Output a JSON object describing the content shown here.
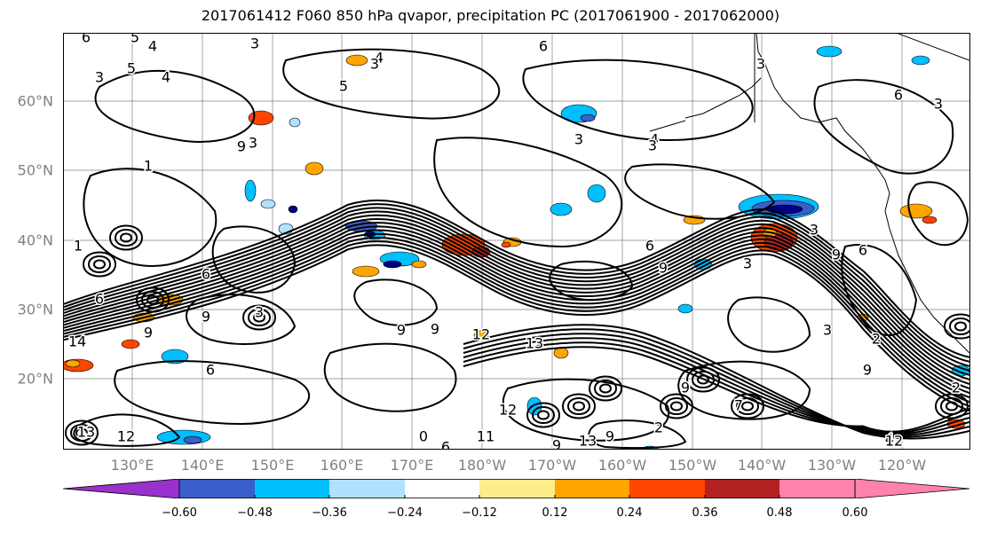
{
  "title": "2017061412 F060 850 hPa qvapor, precipitation PC (2017061900 - 2017062000)",
  "map": {
    "lat_labels": [
      "20°N",
      "30°N",
      "40°N",
      "50°N",
      "60°N"
    ],
    "lon_labels": [
      "130°E",
      "140°E",
      "150°E",
      "160°E",
      "170°E",
      "180°W",
      "170°W",
      "160°W",
      "150°W",
      "140°W",
      "130°W",
      "120°W"
    ],
    "contour_labels": [
      "6",
      "5",
      "4",
      "3",
      "4",
      "4",
      "6",
      "5",
      "3",
      "6",
      "3",
      "4",
      "3",
      "3",
      "3",
      "6",
      "1",
      "9",
      "6",
      "3",
      "1",
      "3",
      "6",
      "6",
      "9",
      "3",
      "9",
      "6",
      "3",
      "2",
      "3",
      "2",
      "13",
      "12",
      "14",
      "9",
      "9",
      "9",
      "9",
      "12",
      "13",
      "11",
      "9",
      "6",
      "9",
      "2",
      "9",
      "9",
      "7",
      "12",
      "13",
      "4",
      "12",
      "6",
      "5",
      "3",
      "0"
    ],
    "line_color": "#000000",
    "grid_color": "#808080"
  },
  "colorbar": {
    "tick_labels": [
      "−0.60",
      "−0.48",
      "−0.36",
      "−0.24",
      "−0.12",
      "0.12",
      "0.24",
      "0.36",
      "0.48",
      "0.60"
    ],
    "colors": [
      "#9932cc",
      "#000080",
      "#3a5fcd",
      "#00bfff",
      "#b0e2ff",
      "#ffffff",
      "#ffec8b",
      "#ffa500",
      "#ff4500",
      "#b22222",
      "#ff82ab"
    ]
  }
}
